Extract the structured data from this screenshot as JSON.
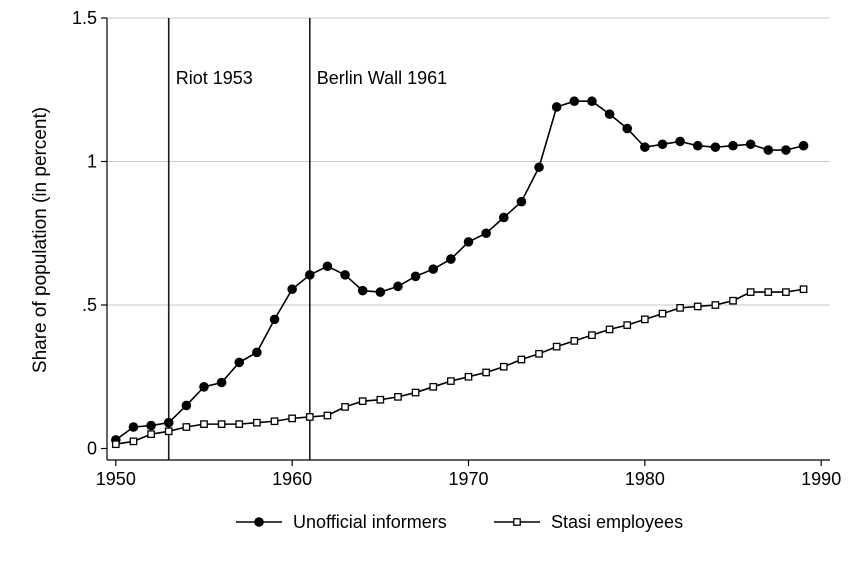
{
  "chart_data": {
    "type": "line",
    "title": "",
    "xlabel": "",
    "ylabel": "Share of population (in percent)",
    "xlim": [
      1949.5,
      1990.5
    ],
    "ylim": [
      -0.04,
      1.5
    ],
    "x_ticks": [
      1950,
      1960,
      1970,
      1980,
      1990
    ],
    "x_tick_labels": [
      "1950",
      "1960",
      "1970",
      "1980",
      "1990"
    ],
    "y_ticks": [
      0,
      0.5,
      1,
      1.5
    ],
    "y_tick_labels": [
      "0",
      ".5",
      "1",
      "1.5"
    ],
    "grid": "horizontal",
    "legend_position": "bottom",
    "annotations": [
      {
        "x": 1953,
        "label": "Riot 1953"
      },
      {
        "x": 1961,
        "label": "Berlin Wall 1961"
      }
    ],
    "series": [
      {
        "name": "Unofficial informers",
        "marker": "filled-circle",
        "color": "#000000",
        "x": [
          1950,
          1951,
          1952,
          1953,
          1954,
          1955,
          1956,
          1957,
          1958,
          1959,
          1960,
          1961,
          1962,
          1963,
          1964,
          1965,
          1966,
          1967,
          1968,
          1969,
          1970,
          1971,
          1972,
          1973,
          1974,
          1975,
          1976,
          1977,
          1978,
          1979,
          1980,
          1981,
          1982,
          1983,
          1984,
          1985,
          1986,
          1987,
          1988,
          1989
        ],
        "values": [
          0.03,
          0.075,
          0.08,
          0.09,
          0.15,
          0.215,
          0.23,
          0.3,
          0.335,
          0.45,
          0.555,
          0.605,
          0.635,
          0.605,
          0.55,
          0.545,
          0.565,
          0.6,
          0.625,
          0.66,
          0.72,
          0.75,
          0.805,
          0.86,
          0.98,
          1.19,
          1.21,
          1.21,
          1.165,
          1.115,
          1.05,
          1.06,
          1.07,
          1.055,
          1.05,
          1.055,
          1.06,
          1.04,
          1.04,
          1.055
        ]
      },
      {
        "name": "Stasi employees",
        "marker": "hollow-square",
        "color": "#000000",
        "x": [
          1950,
          1951,
          1952,
          1953,
          1954,
          1955,
          1956,
          1957,
          1958,
          1959,
          1960,
          1961,
          1962,
          1963,
          1964,
          1965,
          1966,
          1967,
          1968,
          1969,
          1970,
          1971,
          1972,
          1973,
          1974,
          1975,
          1976,
          1977,
          1978,
          1979,
          1980,
          1981,
          1982,
          1983,
          1984,
          1985,
          1986,
          1987,
          1988,
          1989
        ],
        "values": [
          0.015,
          0.025,
          0.05,
          0.06,
          0.075,
          0.085,
          0.085,
          0.085,
          0.09,
          0.095,
          0.105,
          0.11,
          0.115,
          0.145,
          0.165,
          0.17,
          0.18,
          0.195,
          0.215,
          0.235,
          0.25,
          0.265,
          0.285,
          0.31,
          0.33,
          0.355,
          0.375,
          0.395,
          0.415,
          0.43,
          0.45,
          0.47,
          0.49,
          0.495,
          0.5,
          0.515,
          0.545,
          0.545,
          0.545,
          0.555
        ]
      }
    ]
  }
}
